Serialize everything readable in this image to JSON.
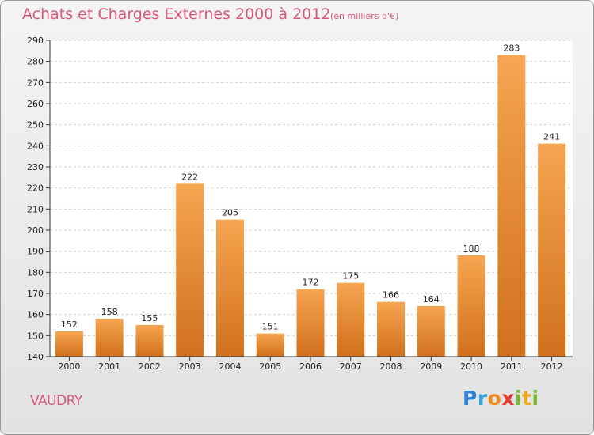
{
  "header": {
    "title": "Achats et Charges Externes 2000 à 2012",
    "subtitle": "(en milliers d'€)"
  },
  "commune": "VAUDRY",
  "logo": {
    "letters": [
      "P",
      "r",
      "o",
      "x",
      "i",
      "t",
      "i"
    ],
    "colors": [
      "#2e7fd6",
      "#3aa3e0",
      "#f08a1c",
      "#e23a2c",
      "#7ab833",
      "#f0a81c",
      "#7ab833"
    ]
  },
  "colors": {
    "bar_top": "#f6a550",
    "bar_bottom": "#d0701c",
    "accent": "#d65a78"
  },
  "chart_data": {
    "type": "bar",
    "title": "Achats et Charges Externes 2000 à 2012",
    "categories": [
      "2000",
      "2001",
      "2002",
      "2003",
      "2004",
      "2005",
      "2006",
      "2007",
      "2008",
      "2009",
      "2010",
      "2011",
      "2012"
    ],
    "values": [
      152,
      158,
      155,
      222,
      205,
      151,
      172,
      175,
      166,
      164,
      188,
      283,
      241
    ],
    "ylim": [
      140,
      290
    ],
    "yticks": [
      140,
      150,
      160,
      170,
      180,
      190,
      200,
      210,
      220,
      230,
      240,
      250,
      260,
      270,
      280,
      290
    ],
    "grid": true,
    "legend": "none"
  }
}
